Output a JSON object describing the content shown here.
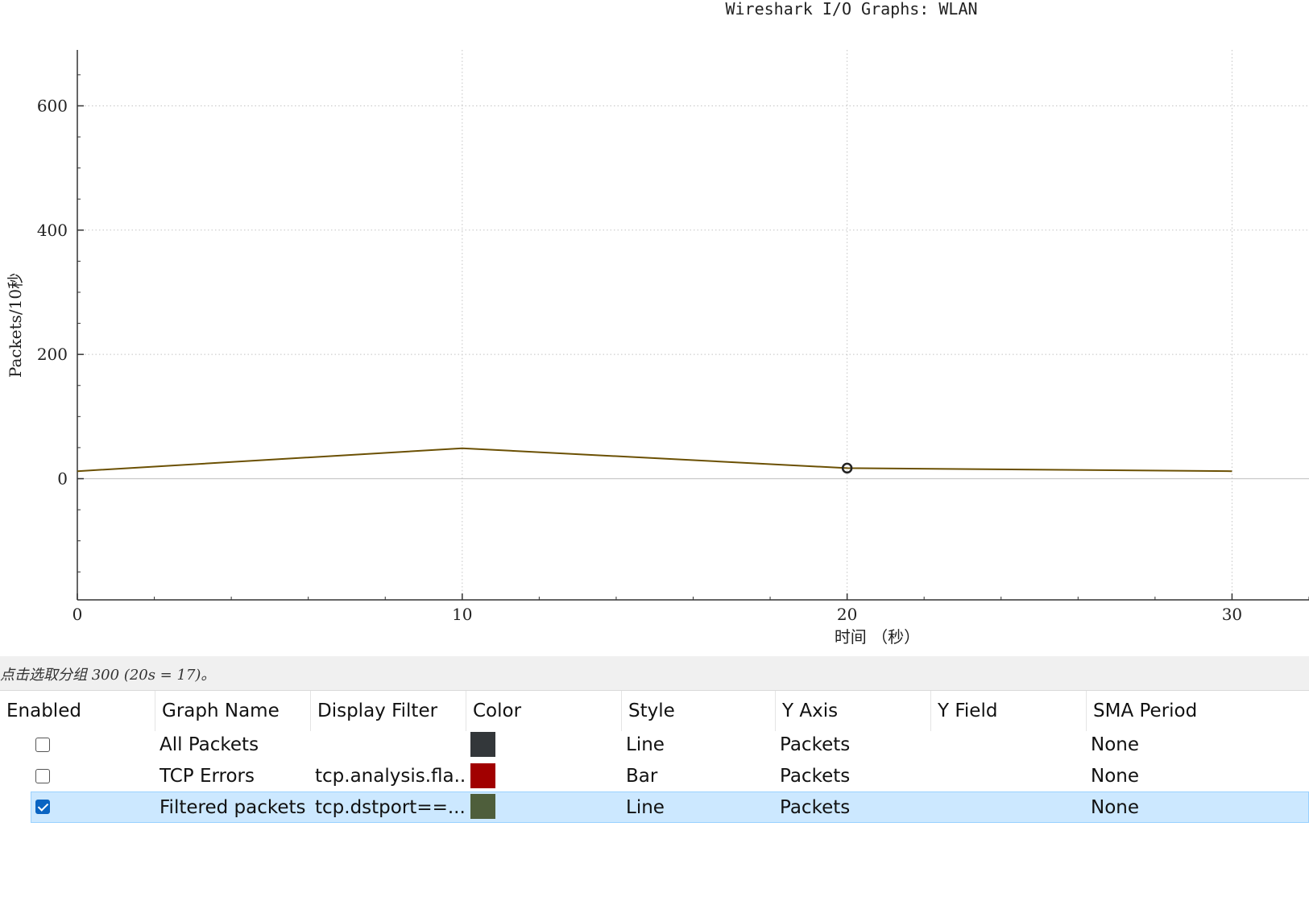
{
  "chart_data": {
    "type": "line",
    "title": "Wireshark I/O Graphs: WLAN",
    "xlabel": "时间 （秒）",
    "ylabel": "Packets/10秒",
    "xlim": [
      0,
      32
    ],
    "ylim": [
      -195,
      690
    ],
    "x_ticks": [
      "0",
      "10",
      "20",
      "30"
    ],
    "y_ticks": [
      "0",
      "200",
      "400",
      "600"
    ],
    "grid": true,
    "series": [
      {
        "color": "#6b5003",
        "x": [
          0,
          10,
          20,
          30
        ],
        "values": [
          12,
          49,
          17,
          12
        ]
      }
    ],
    "marker": {
      "x": 20,
      "y": 17
    }
  },
  "status": {
    "text": "点击选取分组 300 (20s = 17)。"
  },
  "table": {
    "headers": [
      "Enabled",
      "Graph Name",
      "Display Filter",
      "Color",
      "Style",
      "Y Axis",
      "Y Field",
      "SMA Period"
    ],
    "rows": [
      {
        "enabled": false,
        "name": "All Packets",
        "filter": "",
        "color": "#33373a",
        "style": "Line",
        "y_axis": "Packets",
        "y_field": "",
        "sma": "None"
      },
      {
        "enabled": false,
        "name": "TCP Errors",
        "filter": "tcp.analysis.fla...",
        "color": "#a10000",
        "style": "Bar",
        "y_axis": "Packets",
        "y_field": "",
        "sma": "None"
      },
      {
        "enabled": true,
        "name": "Filtered packets",
        "filter": "tcp.dstport==...",
        "color": "#4e5e3b",
        "style": "Line",
        "y_axis": "Packets",
        "y_field": "",
        "sma": "None"
      }
    ]
  }
}
